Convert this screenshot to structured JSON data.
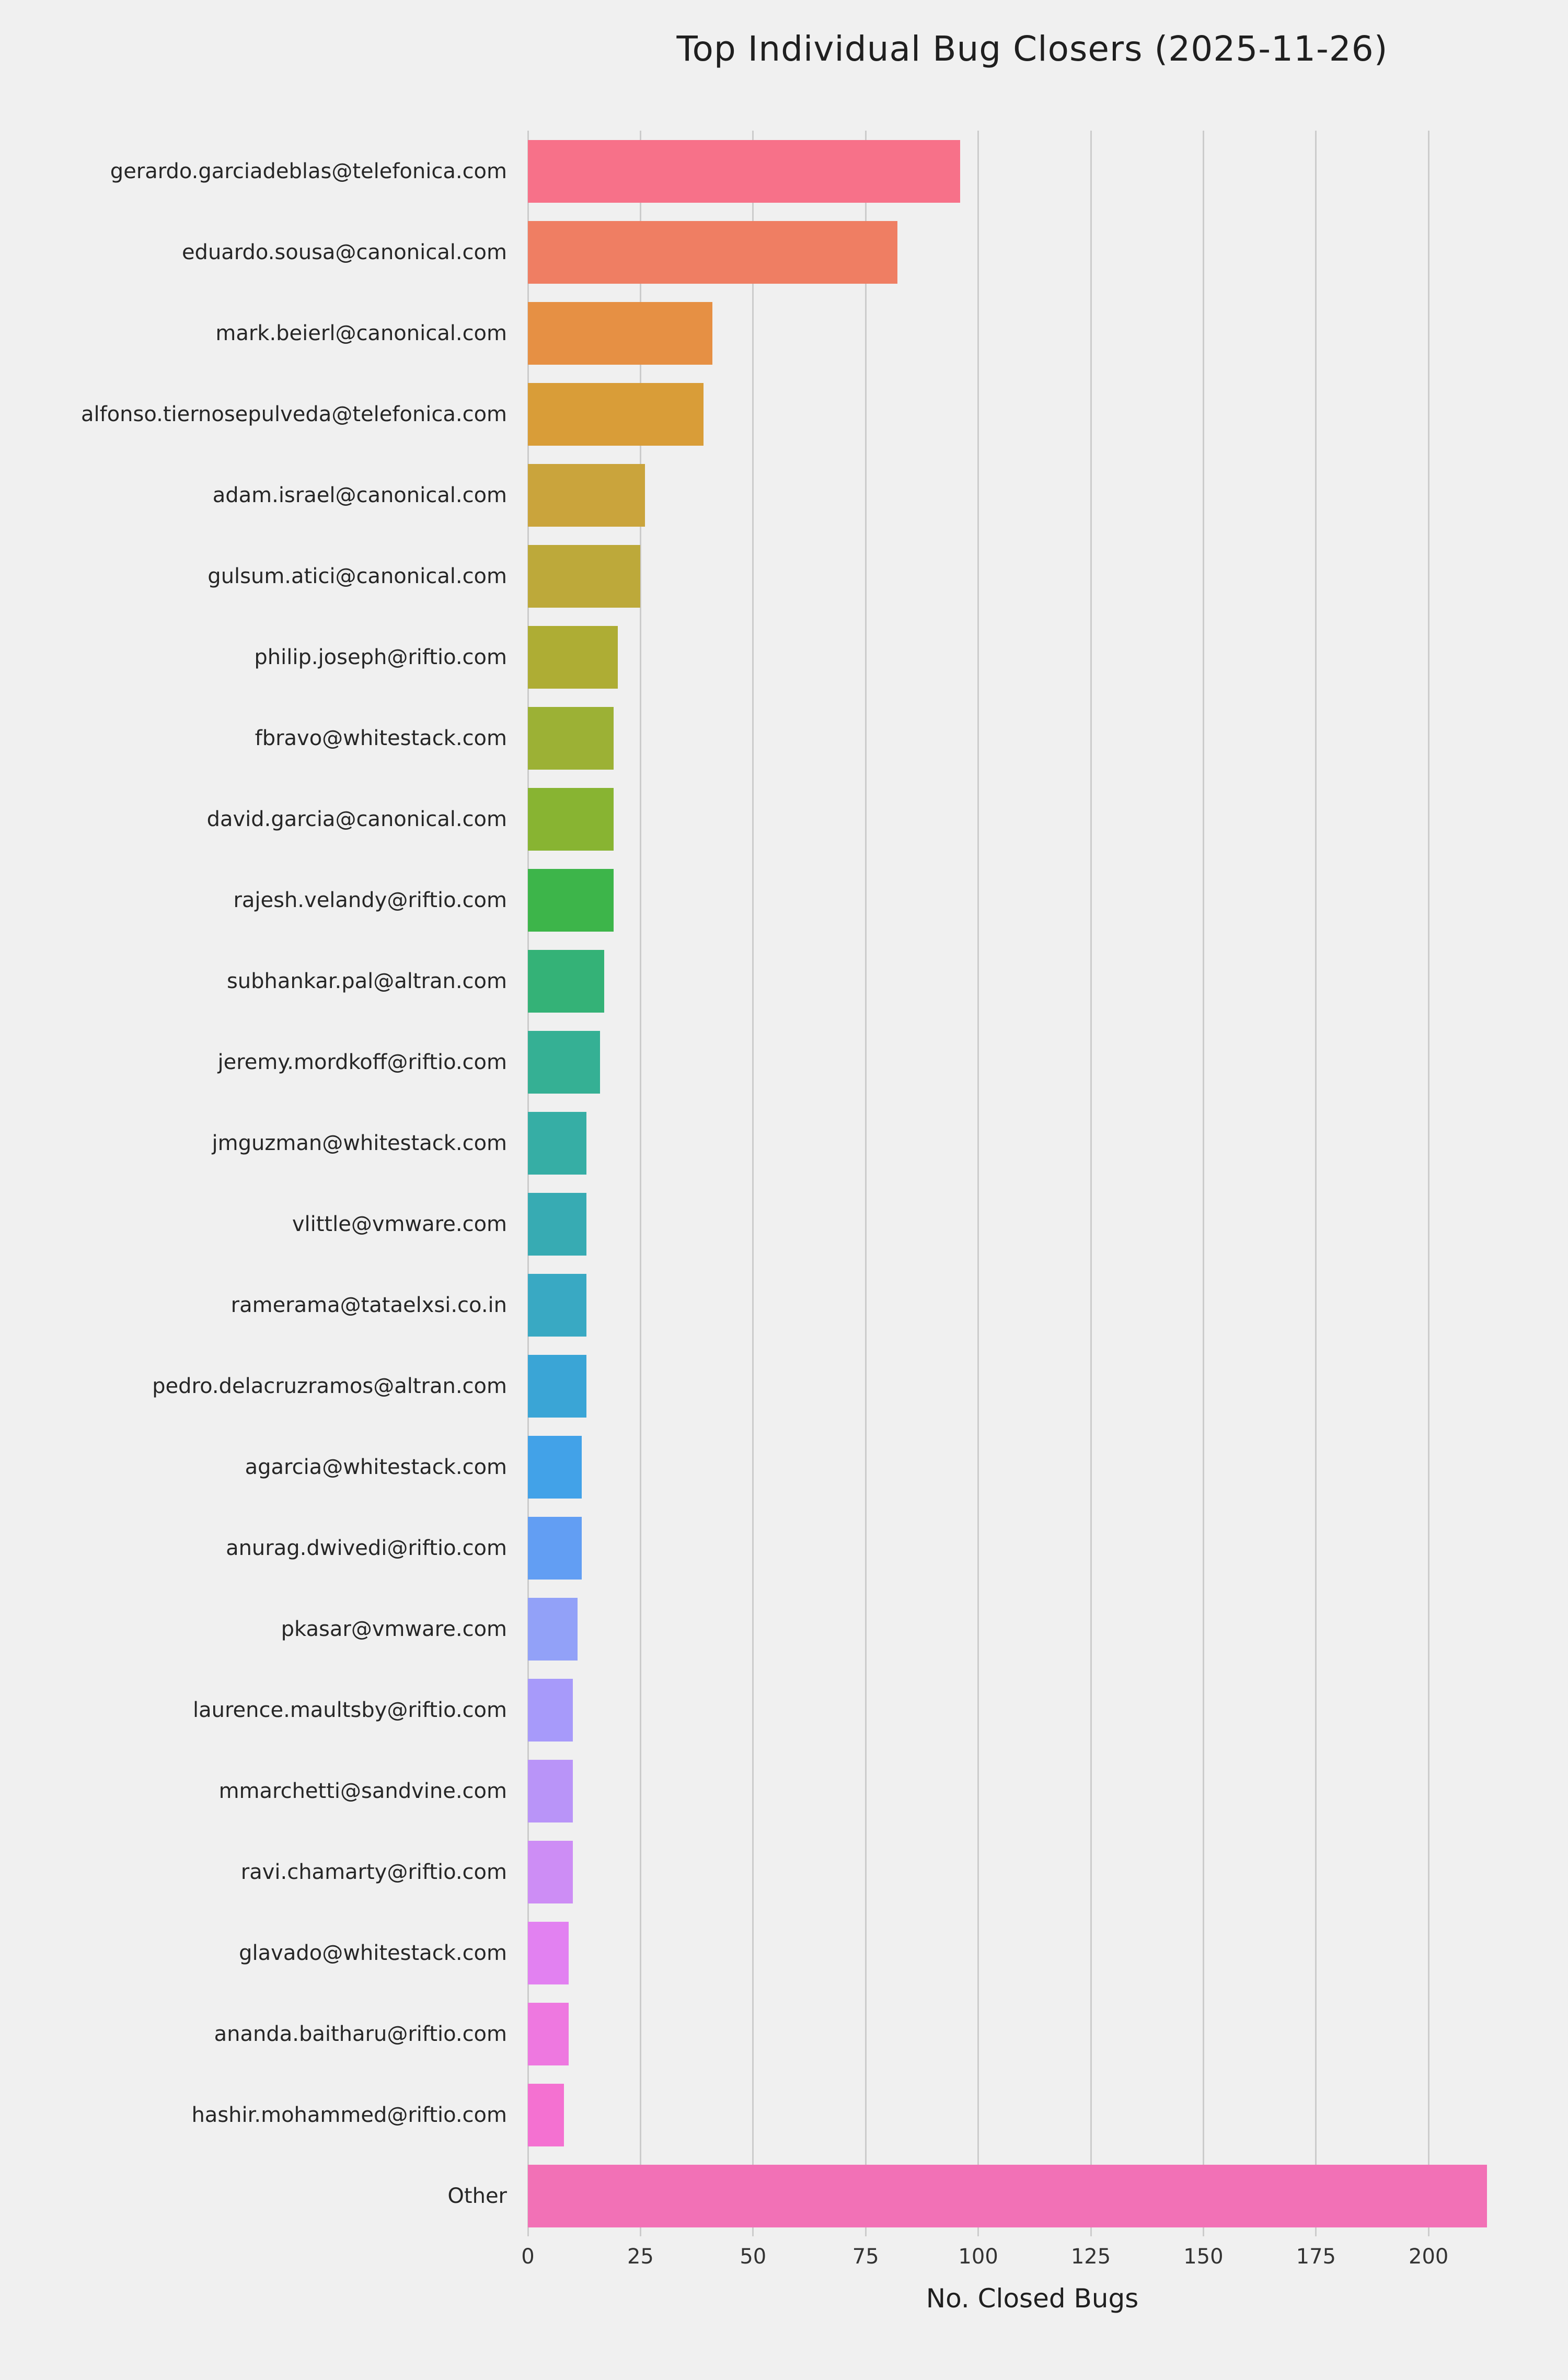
{
  "chart_data": {
    "type": "bar",
    "orientation": "horizontal",
    "title": "Top Individual Bug Closers (2025-11-26)",
    "xlabel": "No. Closed Bugs",
    "ylabel": "",
    "xlim": [
      0,
      224
    ],
    "xticks": [
      0,
      25,
      50,
      75,
      100,
      125,
      150,
      175,
      200
    ],
    "grid": true,
    "legend": false,
    "background_color": "#f0f0f0",
    "gridline_color": "#cccccc",
    "categories": [
      "gerardo.garciadeblas@telefonica.com",
      "eduardo.sousa@canonical.com",
      "mark.beierl@canonical.com",
      "alfonso.tiernosepulveda@telefonica.com",
      "adam.israel@canonical.com",
      "gulsum.atici@canonical.com",
      "philip.joseph@riftio.com",
      "fbravo@whitestack.com",
      "david.garcia@canonical.com",
      "rajesh.velandy@riftio.com",
      "subhankar.pal@altran.com",
      "jeremy.mordkoff@riftio.com",
      "jmguzman@whitestack.com",
      "vlittle@vmware.com",
      "ramerama@tataelxsi.co.in",
      "pedro.delacruzramos@altran.com",
      "agarcia@whitestack.com",
      "anurag.dwivedi@riftio.com",
      "pkasar@vmware.com",
      "laurence.maultsby@riftio.com",
      "mmarchetti@sandvine.com",
      "ravi.chamarty@riftio.com",
      "glavado@whitestack.com",
      "ananda.baitharu@riftio.com",
      "hashir.mohammed@riftio.com",
      "Other"
    ],
    "values": [
      96,
      82,
      41,
      39,
      26,
      25,
      20,
      19,
      19,
      19,
      17,
      16,
      13,
      13,
      13,
      13,
      12,
      12,
      11,
      10,
      10,
      10,
      9,
      9,
      8,
      213
    ],
    "colors": [
      "#f77189",
      "#ef7e63",
      "#e69044",
      "#d99d38",
      "#caa43c",
      "#bda93a",
      "#aead34",
      "#9cb135",
      "#88b432",
      "#3db54a",
      "#34b277",
      "#35b094",
      "#36aea5",
      "#37abb3",
      "#39a9c3",
      "#3aa5d6",
      "#42a2e8",
      "#629ef3",
      "#92a1f8",
      "#a79afa",
      "#b994f8",
      "#cd8df5",
      "#e281f1",
      "#ee78e0",
      "#f471d1",
      "#f271b6"
    ]
  }
}
